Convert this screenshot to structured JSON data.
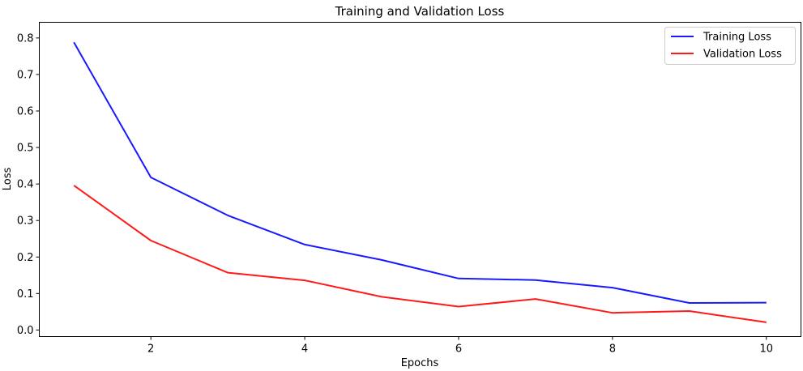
{
  "chart_data": {
    "type": "line",
    "title": "Training and Validation Loss",
    "xlabel": "Epochs",
    "ylabel": "Loss",
    "x": [
      1,
      2,
      3,
      4,
      5,
      6,
      7,
      8,
      9,
      10
    ],
    "xticks": [
      2,
      4,
      6,
      8,
      10
    ],
    "yticks": [
      0.0,
      0.1,
      0.2,
      0.3,
      0.4,
      0.5,
      0.6,
      0.7,
      0.8
    ],
    "xlim": [
      0.55,
      10.45
    ],
    "ylim": [
      -0.018,
      0.843
    ],
    "grid": false,
    "legend_position": "top-right",
    "series": [
      {
        "name": "Training Loss",
        "color": "#1a1aff",
        "values": [
          0.788,
          0.418,
          0.314,
          0.234,
          0.192,
          0.141,
          0.137,
          0.116,
          0.074,
          0.075
        ]
      },
      {
        "name": "Validation Loss",
        "color": "#ff1a1a",
        "values": [
          0.396,
          0.245,
          0.157,
          0.136,
          0.091,
          0.064,
          0.085,
          0.047,
          0.052,
          0.021
        ]
      }
    ]
  }
}
